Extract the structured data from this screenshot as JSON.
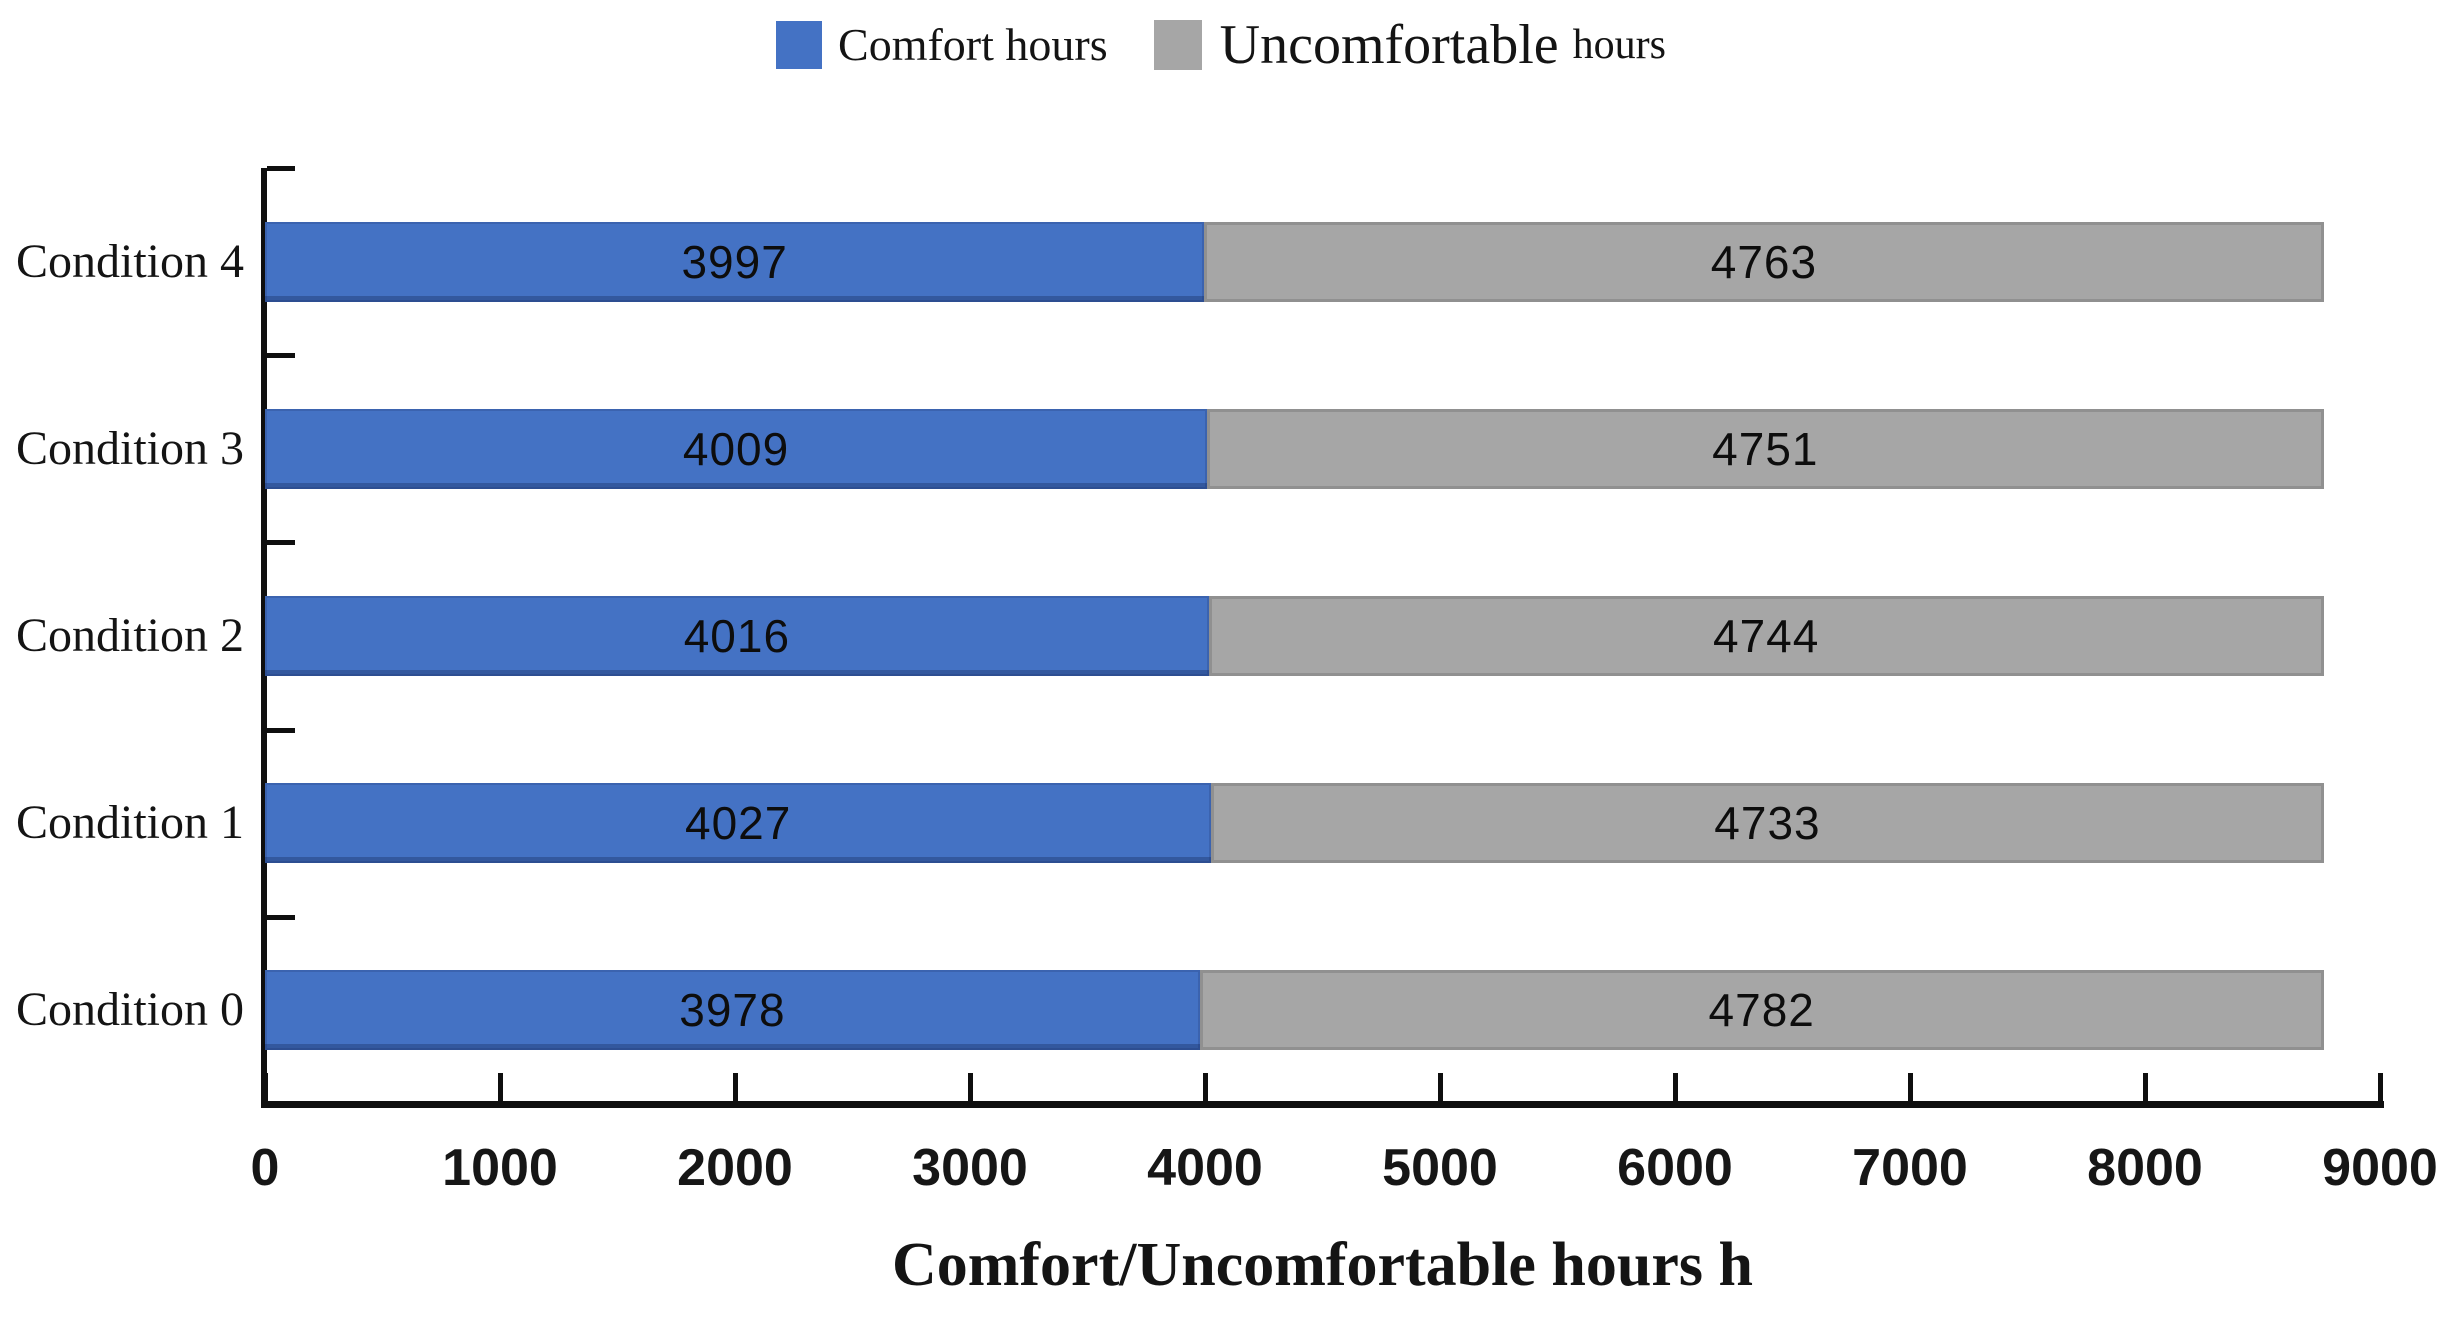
{
  "chart_data": {
    "type": "bar",
    "orientation": "horizontal",
    "stacked": true,
    "order": "top-to-bottom",
    "categories": [
      "Condition 4",
      "Condition 3",
      "Condition 2",
      "Condition 1",
      "Condition 0"
    ],
    "series": [
      {
        "name": "Comfort hours",
        "color": "#4472C4",
        "values": [
          3997,
          4009,
          4016,
          4027,
          3978
        ]
      },
      {
        "name": "Uncomfortable hours",
        "color": "#A6A6A6",
        "values": [
          4763,
          4751,
          4744,
          4733,
          4782
        ]
      }
    ],
    "title": "",
    "xlabel": "Comfort/Uncomfortable hours h",
    "ylabel": "",
    "xlim": [
      0,
      9000
    ],
    "xticks": [
      0,
      1000,
      2000,
      3000,
      4000,
      5000,
      6000,
      7000,
      8000,
      9000
    ],
    "grid": false,
    "legend_position": "top",
    "bar_total_per_row": 8760
  },
  "legend": {
    "items": [
      {
        "label": "Comfort hours",
        "color": "#4472C4",
        "icon": "blue-square-icon"
      },
      {
        "parts": [
          "Uncomfortable",
          "hours"
        ],
        "color": "#A6A6A6",
        "icon": "gray-square-icon"
      }
    ]
  },
  "axis": {
    "title": "Comfort/Uncomfortable hours h"
  },
  "colors": {
    "comfort": "#4472C4",
    "uncomfortable": "#A6A6A6",
    "axis": "#0f0f0f",
    "text": "#141414"
  }
}
